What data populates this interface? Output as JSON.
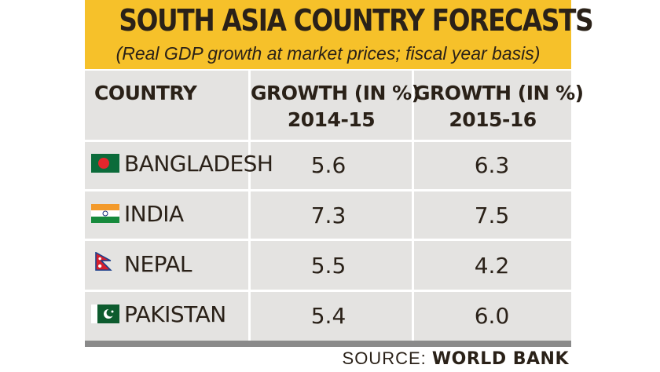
{
  "title": "SOUTH ASIA COUNTRY FORECASTS",
  "subtitle": "(Real GDP growth at market prices; fiscal year basis)",
  "table": {
    "header_country": "COUNTRY",
    "header_col1_line1": "GROWTH (IN %)",
    "header_col1_line2": "2014-15",
    "header_col2_line1": "GROWTH (IN %)",
    "header_col2_line2": "2015-16"
  },
  "source_label": "SOURCE:",
  "source_name": "WORLD BANK",
  "chart_data": {
    "type": "table",
    "title": "SOUTH ASIA COUNTRY FORECASTS",
    "subtitle": "(Real GDP growth at market prices; fiscal year basis)",
    "columns": [
      "COUNTRY",
      "GROWTH (IN %) 2014-15",
      "GROWTH (IN %) 2015-16"
    ],
    "rows": [
      {
        "country": "BANGLADESH",
        "v1": "5.6",
        "v2": "6.3",
        "flag": "bangladesh-flag-icon"
      },
      {
        "country": "INDIA",
        "v1": "7.3",
        "v2": "7.5",
        "flag": "india-flag-icon"
      },
      {
        "country": "NEPAL",
        "v1": "5.5",
        "v2": "4.2",
        "flag": "nepal-flag-icon"
      },
      {
        "country": "PAKISTAN",
        "v1": "5.4",
        "v2": "6.0",
        "flag": "pakistan-flag-icon"
      }
    ],
    "colors": {
      "header_bg": "#f6c12a",
      "table_bg": "#e4e3e1",
      "text": "#2a2118"
    }
  }
}
